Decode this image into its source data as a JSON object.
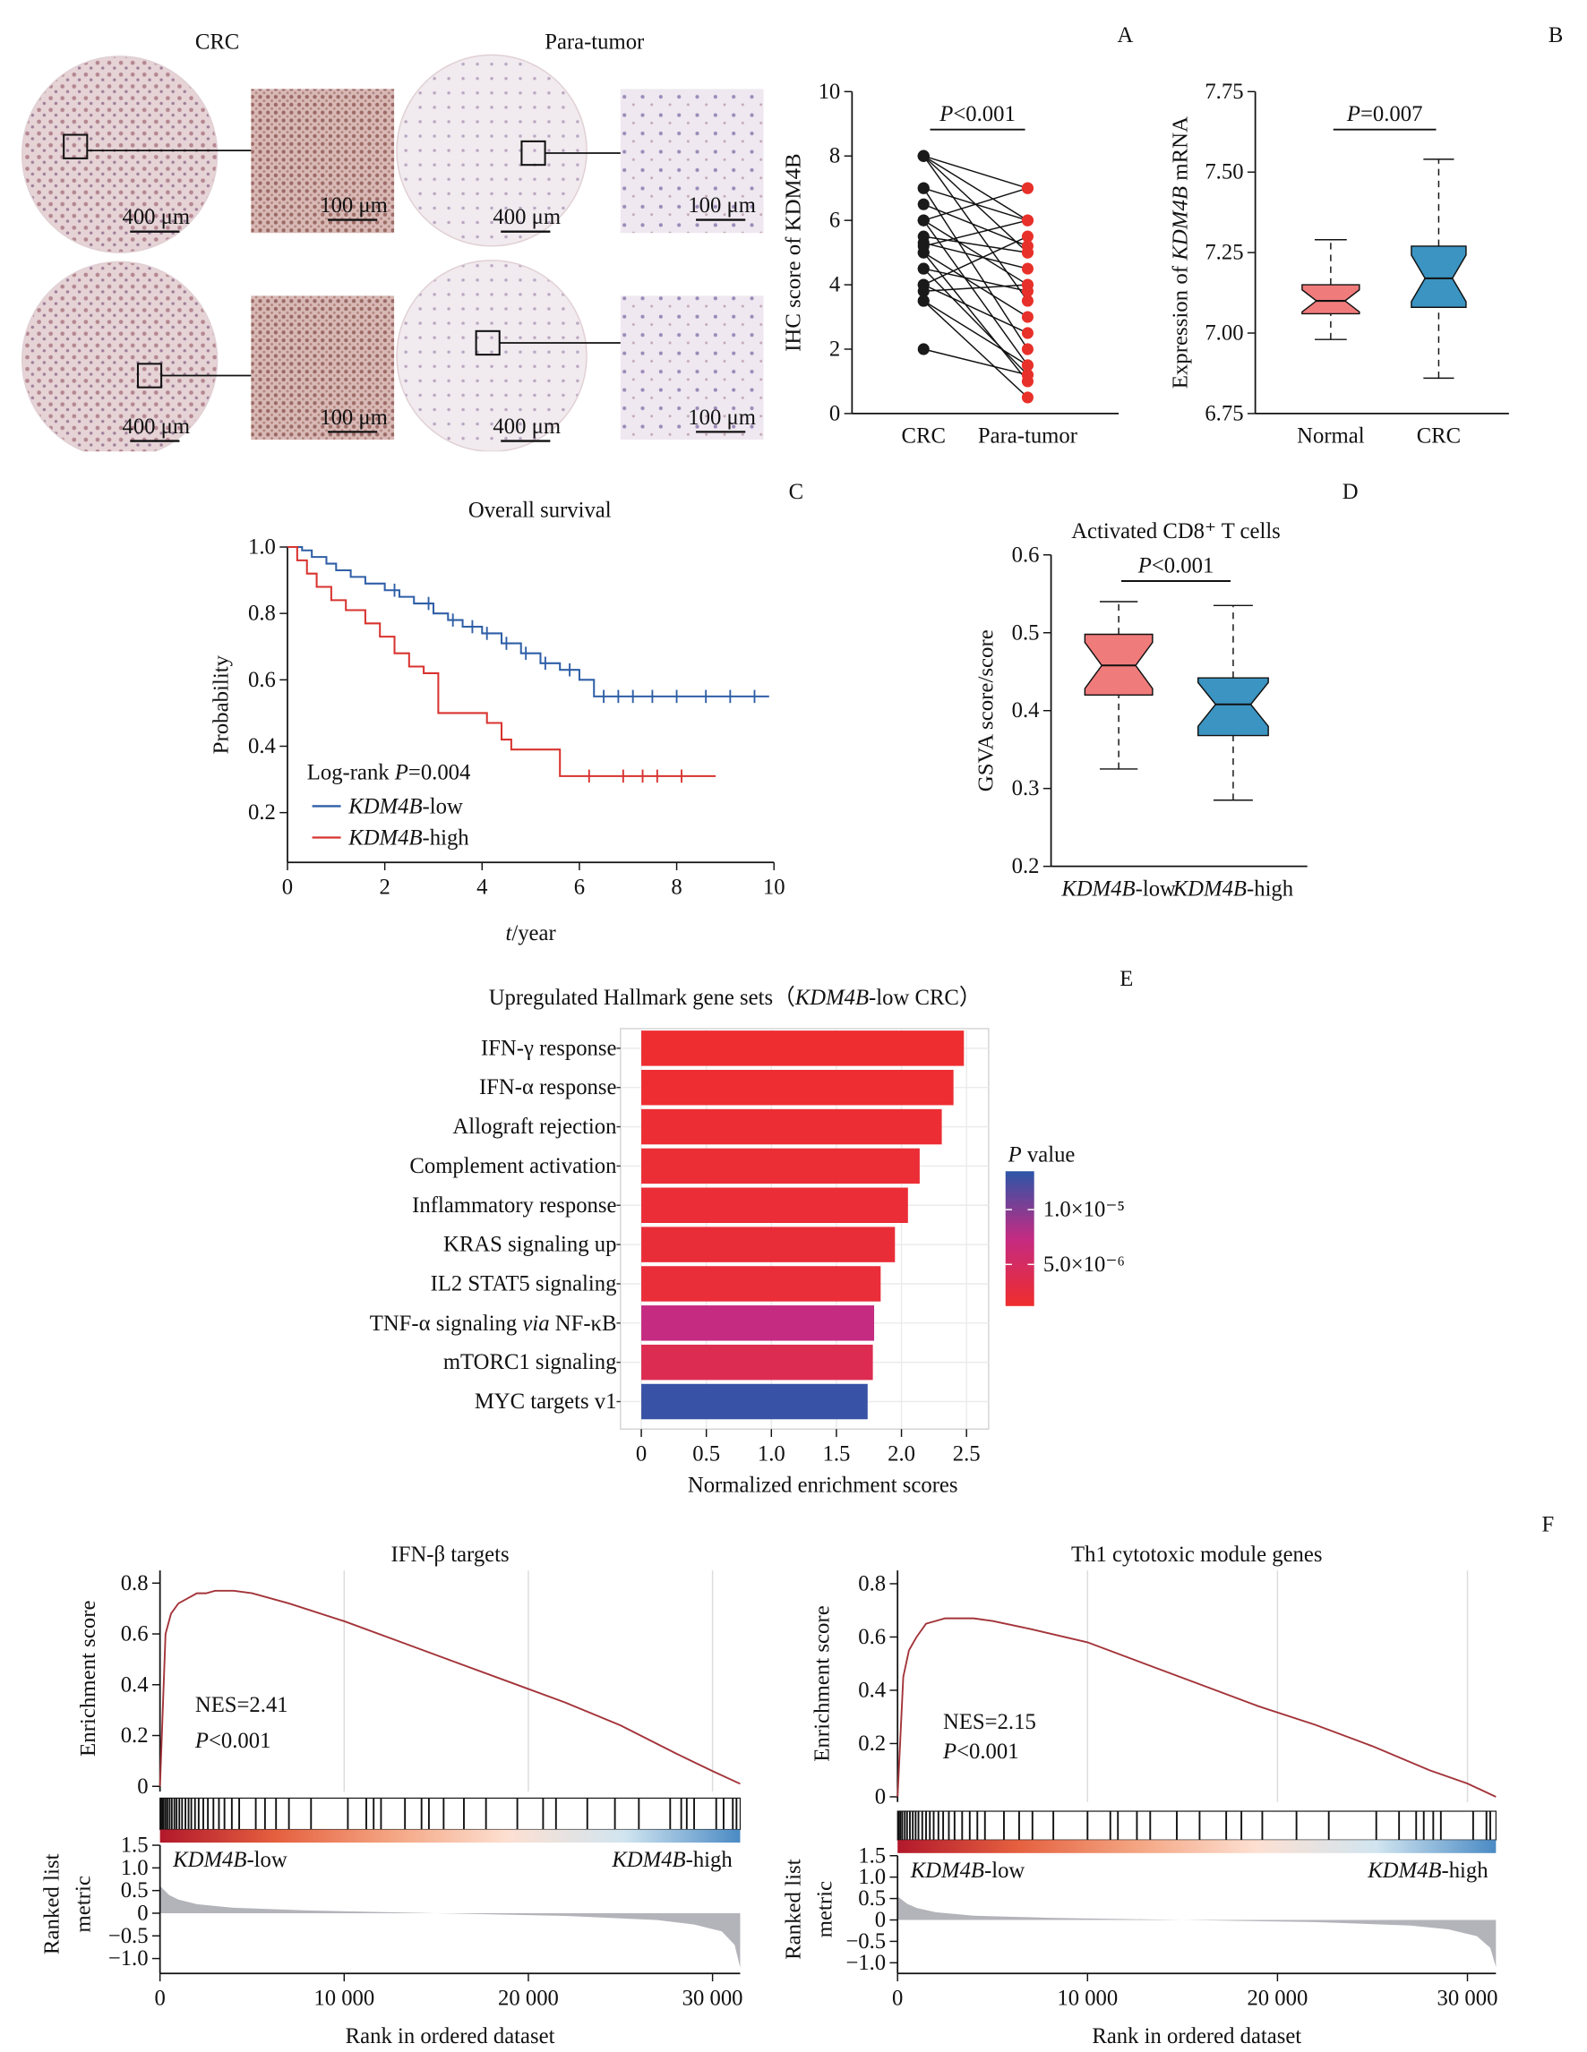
{
  "panel_labels": [
    "A",
    "B",
    "C",
    "D",
    "E",
    "F"
  ],
  "histology": {
    "columns": [
      "CRC",
      "Para-tumor"
    ],
    "scale_labels": [
      "400 μm",
      "100 μm"
    ]
  },
  "chart_data": [
    {
      "type": "paired",
      "ylabel": "IHC score of KDM4B",
      "annotation": [
        {
          "italic": "P"
        },
        "<0.001"
      ],
      "categories": [
        "CRC",
        "Para-tumor"
      ],
      "colors": [
        "#1a1a1a",
        "#e8302a"
      ],
      "pairs": [
        [
          8,
          7
        ],
        [
          8,
          6
        ],
        [
          8,
          5
        ],
        [
          8,
          3.5
        ],
        [
          7,
          6
        ],
        [
          7,
          2
        ],
        [
          6.5,
          5.2
        ],
        [
          6,
          4
        ],
        [
          6,
          7
        ],
        [
          6,
          1.5
        ],
        [
          5.5,
          5
        ],
        [
          5.3,
          4.5
        ],
        [
          5.2,
          6
        ],
        [
          5,
          3
        ],
        [
          5,
          1
        ],
        [
          4.5,
          3.8
        ],
        [
          4.5,
          1.2
        ],
        [
          4,
          5.5
        ],
        [
          4,
          2.5
        ],
        [
          3.8,
          4
        ],
        [
          3.5,
          1.5
        ],
        [
          3.5,
          0.5
        ],
        [
          2,
          1.2
        ]
      ],
      "ylim": [
        0,
        10
      ],
      "yticks": [
        0,
        2,
        4,
        6,
        8,
        10
      ]
    },
    {
      "type": "box",
      "ylabel": [
        "Expression of ",
        {
          "italic": "KDM4B"
        },
        " mRNA"
      ],
      "annotation": [
        {
          "italic": "P"
        },
        "=0.007"
      ],
      "categories": [
        "Normal",
        "CRC"
      ],
      "colors": [
        "#f07b7b",
        "#3b94c2"
      ],
      "boxes": [
        {
          "min": 6.98,
          "q1": 7.06,
          "median": 7.1,
          "q3": 7.15,
          "max": 7.29
        },
        {
          "min": 6.86,
          "q1": 7.08,
          "median": 7.17,
          "q3": 7.27,
          "max": 7.54
        }
      ],
      "ylim": [
        6.75,
        7.75
      ],
      "yticks": [
        6.75,
        {
          "value": 7,
          "label": "7.00"
        },
        7.25,
        {
          "value": 7.5,
          "label": "7.50"
        },
        7.75
      ]
    },
    {
      "type": "km",
      "title": "Overall survival",
      "xlabel": [
        {
          "italic": "t"
        },
        "/year"
      ],
      "ylabel": "Probability",
      "annotation": [
        "Log-rank ",
        {
          "italic": "P"
        },
        "=0.004"
      ],
      "xlim": [
        0,
        10
      ],
      "xticks": [
        0,
        2,
        4,
        6,
        8,
        10
      ],
      "ylim": [
        0.05,
        1.0
      ],
      "yticks": [
        0.2,
        0.4,
        0.6,
        0.8,
        {
          "value": 1,
          "label": "1.0"
        }
      ],
      "series": [
        {
          "name": [
            {
              "italic": "KDM4B"
            },
            "-low"
          ],
          "color": "#2f5fa7",
          "x": [
            0,
            0.3,
            0.5,
            0.8,
            1,
            1.3,
            1.6,
            2,
            2.3,
            2.6,
            3,
            3.3,
            3.6,
            4,
            4.4,
            4.8,
            5.2,
            5.6,
            6,
            6.3,
            9.9
          ],
          "values": [
            1,
            0.99,
            0.97,
            0.95,
            0.93,
            0.91,
            0.89,
            0.87,
            0.85,
            0.83,
            0.8,
            0.78,
            0.76,
            0.74,
            0.71,
            0.68,
            0.65,
            0.63,
            0.6,
            0.55,
            0.55
          ],
          "censored": [
            2.2,
            2.9,
            3.4,
            3.8,
            4.1,
            4.5,
            4.9,
            5.3,
            5.8,
            6.5,
            6.8,
            7.1,
            7.5,
            8.0,
            8.6,
            9.1,
            9.6
          ]
        },
        {
          "name": [
            {
              "italic": "KDM4B"
            },
            "-high"
          ],
          "color": "#d8332f",
          "x": [
            0,
            0.2,
            0.4,
            0.6,
            0.9,
            1.2,
            1.6,
            1.9,
            2.2,
            2.5,
            2.8,
            3.1,
            4.1,
            4.4,
            4.6,
            5.6,
            8.8
          ],
          "values": [
            1,
            0.96,
            0.92,
            0.88,
            0.84,
            0.81,
            0.77,
            0.73,
            0.68,
            0.64,
            0.62,
            0.5,
            0.47,
            0.42,
            0.39,
            0.31,
            0.31
          ],
          "censored": [
            6.2,
            6.9,
            7.3,
            7.6,
            8.1
          ]
        }
      ]
    },
    {
      "type": "box",
      "title": "Activated CD8⁺ T cells",
      "ylabel": "GSVA score/score",
      "annotation": [
        {
          "italic": "P"
        },
        "<0.001"
      ],
      "categories": [
        [
          {
            "italic": "KDM4B"
          },
          "-low"
        ],
        [
          {
            "italic": "KDM4B"
          },
          "-high"
        ]
      ],
      "colors": [
        "#f07b7b",
        "#3b94c2"
      ],
      "boxes": [
        {
          "min": 0.325,
          "q1": 0.42,
          "median": 0.458,
          "q3": 0.498,
          "max": 0.54
        },
        {
          "min": 0.285,
          "q1": 0.368,
          "median": 0.408,
          "q3": 0.442,
          "max": 0.535
        }
      ],
      "ylim": [
        0.2,
        0.6
      ],
      "yticks": [
        0.2,
        0.3,
        0.4,
        0.5,
        0.6
      ]
    },
    {
      "type": "hbar",
      "title": [
        "Upregulated Hallmark gene sets（",
        {
          "italic": "KDM4B"
        },
        "-low CRC）"
      ],
      "xlabel": "Normalized enrichment scores",
      "categories": [
        "IFN-γ response",
        "IFN-α response",
        "Allograft rejection",
        "Complement activation",
        "Inflammatory response",
        "KRAS signaling up",
        "IL2 STAT5 signaling",
        [
          "TNF-α signaling ",
          {
            "italic": "via"
          },
          " NF-κB"
        ],
        "mTORC1 signaling",
        "MYC targets v1"
      ],
      "values": [
        2.48,
        2.4,
        2.31,
        2.14,
        2.05,
        1.95,
        1.84,
        1.79,
        1.78,
        1.74
      ],
      "p_values": [
        1.4e-06,
        1.5e-06,
        1.6e-06,
        1.8e-06,
        1.9e-06,
        2e-06,
        2.1e-06,
        7.3e-06,
        3.8e-06,
        1.3e-05
      ],
      "xlim": [
        -0.16,
        2.67
      ],
      "xticks": [
        0,
        0.5,
        {
          "value": 1,
          "label": "1.0"
        },
        1.5,
        {
          "value": 2,
          "label": "2.0"
        },
        2.5
      ],
      "grid": true,
      "legend_title": [
        {
          "italic": "P"
        },
        " value"
      ],
      "colorscale": [
        "#ef2d2d",
        "#c42b82",
        "#2c55a8"
      ],
      "clim": [
        1.2e-06,
        1.35e-05
      ],
      "cticks": [
        {
          "value": 1e-05,
          "label": "1.0×10⁻⁵"
        },
        {
          "value": 5e-06,
          "label": "5.0×10⁻⁶"
        }
      ]
    },
    {
      "type": "gsea",
      "title": "IFN-β targets",
      "ylabel": "Enrichment score",
      "xlabel": "Rank in ordered dataset",
      "color": "#a3343a",
      "x": [
        0,
        300,
        600,
        1000,
        1500,
        2000,
        2500,
        3000,
        3500,
        4000,
        5000,
        7000,
        10000,
        13000,
        16000,
        19000,
        22000,
        25000,
        28000,
        30000,
        31500
      ],
      "values": [
        0,
        0.6,
        0.68,
        0.72,
        0.74,
        0.76,
        0.76,
        0.77,
        0.77,
        0.77,
        0.76,
        0.72,
        0.65,
        0.57,
        0.49,
        0.41,
        0.33,
        0.24,
        0.13,
        0.06,
        0.01
      ],
      "xlim": [
        0,
        31500
      ],
      "xticks": [
        0,
        {
          "value": 10000,
          "label": "10 000"
        },
        {
          "value": 20000,
          "label": "20 000"
        },
        {
          "value": 30000,
          "label": "30 000"
        }
      ],
      "ylim": [
        0,
        0.85
      ],
      "yticks": [
        0,
        0.2,
        0.4,
        0.6,
        0.8
      ],
      "grid": true,
      "annotations": [
        "NES=2.41",
        [
          {
            "italic": "P"
          },
          "<0.001"
        ]
      ],
      "hits": [
        50,
        120,
        200,
        300,
        400,
        520,
        640,
        780,
        900,
        1050,
        1200,
        1380,
        1550,
        1700,
        1900,
        2100,
        2350,
        2600,
        2900,
        3200,
        3500,
        3900,
        4300,
        5200,
        5700,
        6300,
        7000,
        8200,
        10200,
        11200,
        11600,
        12000,
        13300,
        14200,
        14600,
        15400,
        16500,
        17700,
        19400,
        20800,
        21500,
        23200,
        24700,
        26000,
        27700,
        28300,
        28600,
        29000,
        30200,
        30600,
        31100,
        31300
      ],
      "gradient": [
        "#b2182b",
        "#e5603f",
        "#f4a582",
        "#fde0d2",
        "#d1e5f0",
        "#4a8ac4"
      ],
      "metric": {
        "ylabel_lines": [
          "Ranked list",
          "metric"
        ],
        "x": [
          0,
          500,
          1000,
          2000,
          4000,
          8000,
          15000,
          22000,
          27000,
          29000,
          30500,
          31200,
          31500
        ],
        "values": [
          0.6,
          0.4,
          0.3,
          0.2,
          0.12,
          0.06,
          0,
          -0.06,
          -0.15,
          -0.25,
          -0.4,
          -0.7,
          -1.2
        ],
        "ylim": [
          -1.33,
          1.5
        ],
        "yticks": [
          {
            "value": -1,
            "label": "−1.0"
          },
          {
            "value": -0.5,
            "label": "−0.5"
          },
          0,
          0.5,
          {
            "value": 1,
            "label": "1.0"
          },
          1.5
        ],
        "low_label": [
          {
            "italic": "KDM4B"
          },
          "-low"
        ],
        "high_label": [
          {
            "italic": "KDM4B"
          },
          "-high"
        ],
        "colors": [
          "#a3343a",
          "#5b8fc7"
        ]
      }
    },
    {
      "type": "gsea",
      "title": "Th1 cytotoxic module genes",
      "ylabel": "Enrichment score",
      "xlabel": "Rank in ordered dataset",
      "color": "#a3343a",
      "x": [
        0,
        300,
        600,
        1000,
        1500,
        2000,
        2500,
        3000,
        3500,
        4000,
        5000,
        7000,
        10000,
        13000,
        16000,
        19000,
        22000,
        25000,
        28000,
        30000,
        31500
      ],
      "values": [
        0,
        0.45,
        0.55,
        0.6,
        0.65,
        0.66,
        0.67,
        0.67,
        0.67,
        0.67,
        0.66,
        0.63,
        0.58,
        0.5,
        0.42,
        0.34,
        0.27,
        0.19,
        0.1,
        0.05,
        0
      ],
      "xlim": [
        0,
        31500
      ],
      "xticks": [
        0,
        {
          "value": 10000,
          "label": "10 000"
        },
        {
          "value": 20000,
          "label": "20 000"
        },
        {
          "value": 30000,
          "label": "30 000"
        }
      ],
      "ylim": [
        0,
        0.85
      ],
      "yticks": [
        0,
        0.2,
        0.4,
        0.6,
        0.8
      ],
      "grid": true,
      "annotations": [
        "NES=2.15",
        [
          {
            "italic": "P"
          },
          "<0.001"
        ]
      ],
      "hits": [
        60,
        150,
        250,
        380,
        500,
        650,
        800,
        950,
        1100,
        1300,
        1500,
        1700,
        1900,
        2150,
        2400,
        2700,
        3000,
        3400,
        3800,
        4200,
        4600,
        5600,
        6400,
        7100,
        8200,
        10000,
        11200,
        11600,
        12600,
        13300,
        14700,
        15900,
        17300,
        18100,
        19200,
        21000,
        22700,
        25200,
        26400,
        27300,
        27700,
        28200,
        28600,
        30300,
        31000,
        31200
      ],
      "gradient": [
        "#b2182b",
        "#e5603f",
        "#f4a582",
        "#fde0d2",
        "#d1e5f0",
        "#4a8ac4"
      ],
      "metric": {
        "ylabel_lines": [
          "Ranked list",
          "metric"
        ],
        "x": [
          0,
          500,
          1000,
          2000,
          4000,
          8000,
          15000,
          22000,
          27000,
          29000,
          30500,
          31200,
          31500
        ],
        "values": [
          0.55,
          0.38,
          0.28,
          0.18,
          0.1,
          0.05,
          0,
          -0.05,
          -0.13,
          -0.22,
          -0.38,
          -0.65,
          -1.1
        ],
        "ylim": [
          -1.25,
          1.5
        ],
        "yticks": [
          {
            "value": -1,
            "label": "−1.0"
          },
          {
            "value": -0.5,
            "label": "−0.5"
          },
          0,
          0.5,
          {
            "value": 1,
            "label": "1.0"
          },
          1.5
        ],
        "low_label": [
          {
            "italic": "KDM4B"
          },
          "-low"
        ],
        "high_label": [
          {
            "italic": "KDM4B"
          },
          "-high"
        ],
        "colors": [
          "#a3343a",
          "#5b8fc7"
        ]
      }
    }
  ]
}
